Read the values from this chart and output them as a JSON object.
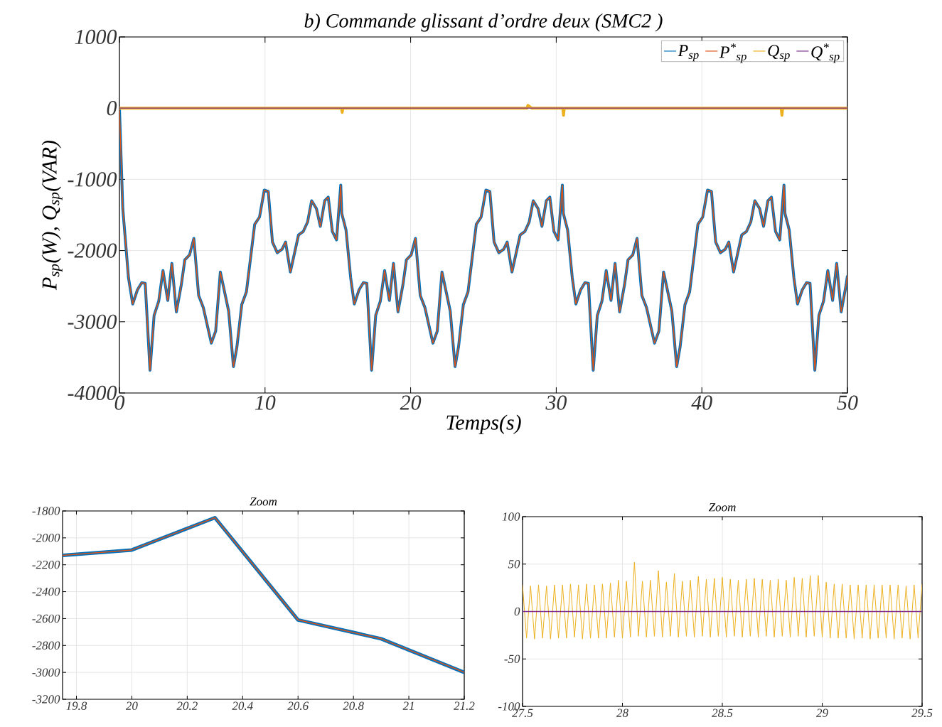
{
  "chart_data": [
    {
      "type": "line",
      "title": "b) Commande glissant d’ordre deux (SMC2 )",
      "xlabel": "Temps(s)",
      "ylabel": "P$_{sp}$(W), Q$_{sp}$(VAR)",
      "xlim": [
        0,
        50
      ],
      "ylim": [
        -4000,
        1000
      ],
      "xticks": [
        0,
        10,
        20,
        30,
        40,
        50
      ],
      "yticks": [
        -4000,
        -3000,
        -2000,
        -1000,
        0,
        1000
      ],
      "grid": true,
      "legend": "top right",
      "x": [
        0,
        0.23,
        0.46,
        0.62,
        0.91,
        1.24,
        1.53,
        1.77,
        2.1,
        2.38,
        2.7,
        2.99,
        3.32,
        3.6,
        3.91,
        4.25,
        4.49,
        4.82,
        5.11,
        5.44,
        5.76,
        6.31,
        6.61,
        6.93,
        7.5,
        7.83,
        8.07,
        8.4,
        8.72,
        9.29,
        9.62,
        9.95,
        10.22,
        10.51,
        10.84,
        11.17,
        11.41,
        11.74,
        12.3,
        12.63,
        12.92,
        13.2,
        13.53,
        13.8,
        14.1,
        14.34,
        14.62,
        14.91,
        15.2,
        15.27,
        15.56,
        15.88,
        16.13,
        16.46,
        16.75,
        16.99,
        17.32,
        17.6,
        17.92,
        18.21,
        18.54,
        18.82,
        19.13,
        19.47,
        19.71,
        20.04,
        20.33,
        20.66,
        20.98,
        21.53,
        21.83,
        22.15,
        22.72,
        23.05,
        23.29,
        23.62,
        23.94,
        24.51,
        24.84,
        25.17,
        25.44,
        25.73,
        26.06,
        26.39,
        26.63,
        26.96,
        27.52,
        27.85,
        28.14,
        28.42,
        28.75,
        29.02,
        29.32,
        29.56,
        29.84,
        30.13,
        30.42,
        30.49,
        30.78,
        31.1,
        31.35,
        31.68,
        31.97,
        32.21,
        32.54,
        32.82,
        33.14,
        33.43,
        33.76,
        34.04,
        34.35,
        34.69,
        34.93,
        35.26,
        35.55,
        35.88,
        36.2,
        36.75,
        37.05,
        37.37,
        37.94,
        38.27,
        38.51,
        38.84,
        39.16,
        39.73,
        40.06,
        40.39,
        40.66,
        40.95,
        41.28,
        41.61,
        41.85,
        42.18,
        42.74,
        43.07,
        43.36,
        43.64,
        43.97,
        44.24,
        44.54,
        44.78,
        45.06,
        45.35,
        45.64,
        45.71,
        46.0,
        46.32,
        46.57,
        46.9,
        47.19,
        47.43,
        47.76,
        48.04,
        48.36,
        48.65,
        48.98,
        49.26,
        49.57,
        49.91,
        50
      ],
      "series": [
        {
          "name": "P$_{sp}$",
          "color": "#0072bd",
          "values": [
            0,
            -1410,
            -1980,
            -2380,
            -2750,
            -2550,
            -2450,
            -2460,
            -3680,
            -2910,
            -2710,
            -2280,
            -2700,
            -2180,
            -2860,
            -2480,
            -2130,
            -2060,
            -1830,
            -2630,
            -2800,
            -3300,
            -3130,
            -2300,
            -2850,
            -3630,
            -3350,
            -2760,
            -2580,
            -1630,
            -1530,
            -1150,
            -1170,
            -1880,
            -2030,
            -1980,
            -1880,
            -2300,
            -1780,
            -1730,
            -1600,
            -1300,
            -1410,
            -1660,
            -1300,
            -1250,
            -1730,
            -1850,
            -1080,
            -1480,
            -1710,
            -2380,
            -2750,
            -2550,
            -2450,
            -2460,
            -3680,
            -2910,
            -2710,
            -2280,
            -2700,
            -2180,
            -2860,
            -2480,
            -2130,
            -2060,
            -1830,
            -2630,
            -2800,
            -3300,
            -3130,
            -2300,
            -2850,
            -3630,
            -3350,
            -2760,
            -2580,
            -1630,
            -1530,
            -1150,
            -1170,
            -1880,
            -2030,
            -1980,
            -1880,
            -2300,
            -1780,
            -1730,
            -1600,
            -1300,
            -1410,
            -1660,
            -1300,
            -1250,
            -1730,
            -1850,
            -1080,
            -1480,
            -1710,
            -2380,
            -2750,
            -2550,
            -2450,
            -2460,
            -3680,
            -2910,
            -2710,
            -2280,
            -2700,
            -2180,
            -2860,
            -2480,
            -2130,
            -2060,
            -1830,
            -2630,
            -2800,
            -3300,
            -3130,
            -2300,
            -2850,
            -3630,
            -3350,
            -2760,
            -2580,
            -1630,
            -1530,
            -1150,
            -1170,
            -1880,
            -2030,
            -1980,
            -1880,
            -2300,
            -1780,
            -1730,
            -1600,
            -1300,
            -1410,
            -1660,
            -1300,
            -1250,
            -1730,
            -1850,
            -1080,
            -1480,
            -1710,
            -2380,
            -2750,
            -2550,
            -2450,
            -2460,
            -3680,
            -2910,
            -2710,
            -2280,
            -2700,
            -2180,
            -2860,
            -2480,
            -2350
          ]
        },
        {
          "name": "P$^{*}$$_{sp}$",
          "color": "#d95319",
          "values": [
            0,
            -1410,
            -1980,
            -2380,
            -2750,
            -2550,
            -2450,
            -2460,
            -3680,
            -2910,
            -2710,
            -2280,
            -2700,
            -2180,
            -2860,
            -2480,
            -2130,
            -2060,
            -1830,
            -2630,
            -2800,
            -3300,
            -3130,
            -2300,
            -2850,
            -3630,
            -3350,
            -2760,
            -2580,
            -1630,
            -1530,
            -1150,
            -1170,
            -1880,
            -2030,
            -1980,
            -1880,
            -2300,
            -1780,
            -1730,
            -1600,
            -1300,
            -1410,
            -1660,
            -1300,
            -1250,
            -1730,
            -1850,
            -1080,
            -1480,
            -1710,
            -2380,
            -2750,
            -2550,
            -2450,
            -2460,
            -3680,
            -2910,
            -2710,
            -2280,
            -2700,
            -2180,
            -2860,
            -2480,
            -2130,
            -2060,
            -1830,
            -2630,
            -2800,
            -3300,
            -3130,
            -2300,
            -2850,
            -3630,
            -3350,
            -2760,
            -2580,
            -1630,
            -1530,
            -1150,
            -1170,
            -1880,
            -2030,
            -1980,
            -1880,
            -2300,
            -1780,
            -1730,
            -1600,
            -1300,
            -1410,
            -1660,
            -1300,
            -1250,
            -1730,
            -1850,
            -1080,
            -1480,
            -1710,
            -2380,
            -2750,
            -2550,
            -2450,
            -2460,
            -3680,
            -2910,
            -2710,
            -2280,
            -2700,
            -2180,
            -2860,
            -2480,
            -2130,
            -2060,
            -1830,
            -2630,
            -2800,
            -3300,
            -3130,
            -2300,
            -2850,
            -3630,
            -3350,
            -2760,
            -2580,
            -1630,
            -1530,
            -1150,
            -1170,
            -1880,
            -2030,
            -1980,
            -1880,
            -2300,
            -1780,
            -1730,
            -1600,
            -1300,
            -1410,
            -1660,
            -1300,
            -1250,
            -1730,
            -1850,
            -1080,
            -1480,
            -1710,
            -2380,
            -2750,
            -2550,
            -2450,
            -2460,
            -3680,
            -2910,
            -2710,
            -2280,
            -2700,
            -2180,
            -2860,
            -2480,
            -2350
          ]
        },
        {
          "name": "Q$_{sp}$",
          "color": "#edb120",
          "x": [
            0,
            15.25,
            15.3,
            15.35,
            28,
            28.05,
            28.3,
            30.45,
            30.5,
            30.55,
            45.45,
            45.5,
            45.55,
            50
          ],
          "values": [
            0,
            0,
            -60,
            0,
            0,
            40,
            0,
            0,
            -100,
            0,
            0,
            -100,
            0,
            0
          ]
        },
        {
          "name": "Q$^{*}$$_{sp}$",
          "color": "#7e2f8e",
          "x": [
            0,
            50
          ],
          "values": [
            0,
            0
          ]
        }
      ]
    },
    {
      "type": "line",
      "title": "Zoom",
      "xlim": [
        19.75,
        21.2
      ],
      "ylim": [
        -3200,
        -1800
      ],
      "xticks": [
        19.8,
        20,
        20.2,
        20.4,
        20.6,
        20.8,
        21,
        21.2
      ],
      "yticks": [
        -3200,
        -3000,
        -2800,
        -2600,
        -2400,
        -2200,
        -2000,
        -1800
      ],
      "grid": true,
      "x": [
        19.75,
        20.0,
        20.3,
        20.6,
        20.9,
        21.2
      ],
      "series": [
        {
          "color": "#0072bd",
          "values": [
            -2130,
            -2090,
            -1850,
            -2610,
            -2750,
            -3000
          ]
        },
        {
          "color": "#d95319",
          "values": [
            -2130,
            -2090,
            -1850,
            -2610,
            -2750,
            -3000
          ]
        }
      ]
    },
    {
      "type": "line",
      "title": "Zoom",
      "xlim": [
        27.5,
        29.5
      ],
      "ylim": [
        -100,
        100
      ],
      "xticks": [
        27.5,
        28,
        28.5,
        29,
        29.5
      ],
      "yticks": [
        -100,
        -50,
        0,
        50,
        100
      ],
      "grid": true,
      "series": [
        {
          "color": "#edb120",
          "x": [
            27.5,
            27.52,
            27.54,
            27.56,
            27.58,
            27.6,
            27.62,
            27.64,
            27.66,
            27.68,
            27.7,
            27.72,
            27.74,
            27.76,
            27.78,
            27.8,
            27.82,
            27.84,
            27.86,
            27.88,
            27.9,
            27.92,
            27.94,
            27.96,
            27.98,
            28,
            28.02,
            28.04,
            28.06,
            28.08,
            28.1,
            28.12,
            28.14,
            28.16,
            28.18,
            28.2,
            28.22,
            28.24,
            28.26,
            28.28,
            28.3,
            28.32,
            28.34,
            28.36,
            28.38,
            28.4,
            28.42,
            28.44,
            28.46,
            28.48,
            28.5,
            28.52,
            28.54,
            28.56,
            28.58,
            28.6,
            28.62,
            28.64,
            28.66,
            28.68,
            28.7,
            28.72,
            28.74,
            28.76,
            28.78,
            28.8,
            28.82,
            28.84,
            28.86,
            28.88,
            28.9,
            28.92,
            28.94,
            28.96,
            28.98,
            29,
            29.02,
            29.04,
            29.06,
            29.08,
            29.1,
            29.12,
            29.14,
            29.16,
            29.18,
            29.2,
            29.22,
            29.24,
            29.26,
            29.28,
            29.3,
            29.32,
            29.34,
            29.36,
            29.38,
            29.4,
            29.42,
            29.44,
            29.46,
            29.48,
            29.5
          ],
          "values": [
            28,
            -28,
            27,
            -29,
            28,
            -28,
            27,
            -29,
            28,
            -28,
            28,
            -28,
            29,
            -27,
            28,
            -29,
            29,
            -28,
            28,
            -28,
            29,
            -28,
            30,
            -27,
            33,
            -28,
            32,
            -27,
            52,
            -26,
            32,
            -27,
            33,
            -26,
            43,
            -27,
            31,
            -26,
            40,
            -27,
            32,
            -26,
            33,
            -27,
            37,
            -26,
            34,
            -27,
            35,
            -26,
            36,
            -27,
            34,
            -26,
            33,
            -27,
            34,
            -26,
            35,
            -27,
            34,
            -26,
            33,
            -27,
            34,
            -26,
            33,
            -27,
            36,
            -26,
            35,
            -27,
            38,
            -26,
            38,
            -27,
            31,
            -28,
            29,
            -28,
            29,
            -28,
            28,
            -29,
            28,
            -28,
            28,
            -29,
            28,
            -28,
            28,
            -28,
            28,
            -29,
            28,
            -28,
            27,
            -29,
            28,
            -28,
            29
          ]
        },
        {
          "color": "#7e2f8e",
          "x": [
            27.5,
            29.5
          ],
          "values": [
            0,
            0
          ]
        }
      ]
    }
  ]
}
